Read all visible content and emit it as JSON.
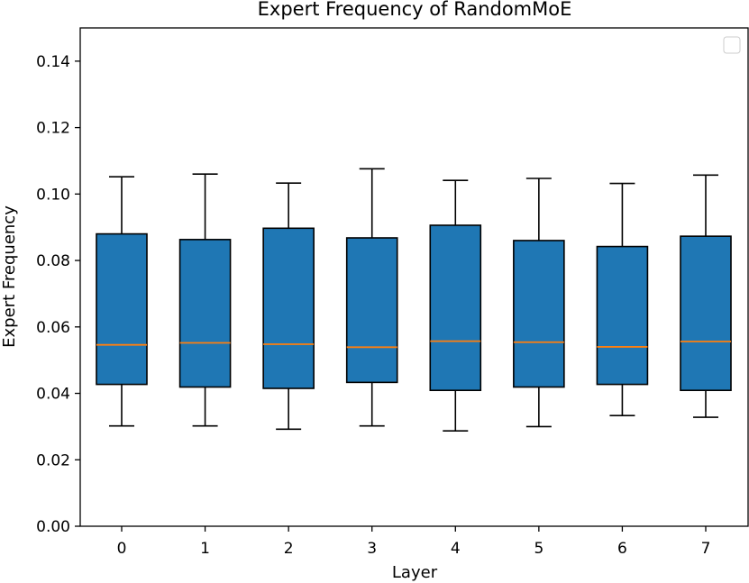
{
  "chart_data": {
    "type": "box",
    "title": "Expert Frequency of RandomMoE",
    "xlabel": "Layer",
    "ylabel": "Expert Frequency",
    "categories": [
      "0",
      "1",
      "2",
      "3",
      "4",
      "5",
      "6",
      "7"
    ],
    "boxes": [
      {
        "whislo": 0.0302,
        "q1": 0.0427,
        "med": 0.0546,
        "q3": 0.088,
        "whishi": 0.1052
      },
      {
        "whislo": 0.0302,
        "q1": 0.0419,
        "med": 0.0552,
        "q3": 0.0863,
        "whishi": 0.106
      },
      {
        "whislo": 0.0292,
        "q1": 0.0415,
        "med": 0.0548,
        "q3": 0.0897,
        "whishi": 0.1033
      },
      {
        "whislo": 0.0302,
        "q1": 0.0433,
        "med": 0.0539,
        "q3": 0.0868,
        "whishi": 0.1076
      },
      {
        "whislo": 0.0287,
        "q1": 0.0409,
        "med": 0.0557,
        "q3": 0.0906,
        "whishi": 0.1041
      },
      {
        "whislo": 0.03,
        "q1": 0.0419,
        "med": 0.0554,
        "q3": 0.086,
        "whishi": 0.1047
      },
      {
        "whislo": 0.0333,
        "q1": 0.0427,
        "med": 0.054,
        "q3": 0.0842,
        "whishi": 0.1032
      },
      {
        "whislo": 0.0328,
        "q1": 0.0409,
        "med": 0.0556,
        "q3": 0.0873,
        "whishi": 0.1057
      }
    ],
    "ylim": [
      0,
      0.15
    ],
    "yticks": [
      "0.00",
      "0.02",
      "0.04",
      "0.06",
      "0.08",
      "0.10",
      "0.12",
      "0.14"
    ],
    "grid": false,
    "legend": "top-right (empty)",
    "colors": {
      "box_fill": "#1f77b4",
      "median": "#ff7f0e",
      "edge": "#000000"
    }
  }
}
